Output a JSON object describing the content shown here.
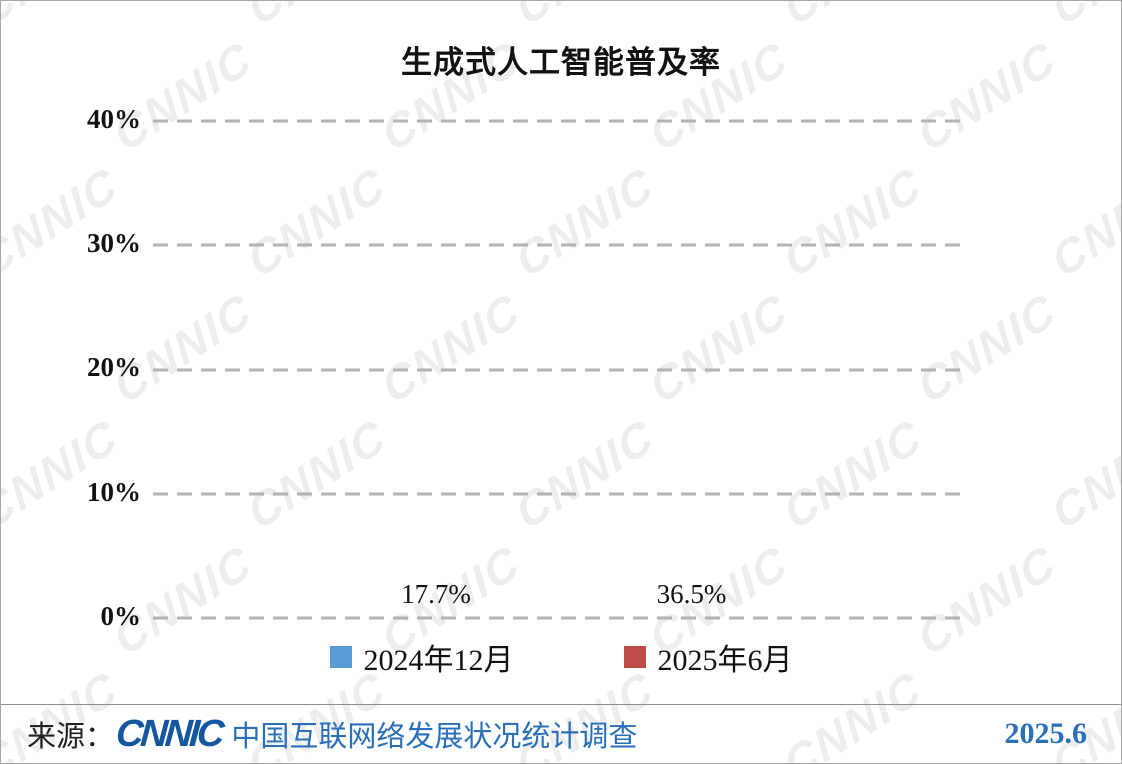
{
  "title": "生成式人工智能普及率",
  "watermark": "CNNIC",
  "chart_data": {
    "type": "bar",
    "title": "生成式人工智能普及率",
    "categories": [
      "2024年12月",
      "2025年6月"
    ],
    "values": [
      17.7,
      36.5
    ],
    "value_labels": [
      "17.7%",
      "36.5%"
    ],
    "colors": [
      "#5B9BD5",
      "#BE4B48"
    ],
    "ylim": [
      0,
      40
    ],
    "yticks": [
      "40%",
      "30%",
      "20%",
      "10%",
      "0%"
    ],
    "grid": "dashed-horizontal",
    "legend_position": "bottom"
  },
  "legend": [
    {
      "label": "2024年12月",
      "color": "#5B9BD5"
    },
    {
      "label": "2025年6月",
      "color": "#BE4B48"
    }
  ],
  "footer": {
    "source_prefix": "来源：",
    "logo_text": "CNNIC",
    "source_text": "中国互联网络发展状况统计调查",
    "date": "2025.6"
  }
}
